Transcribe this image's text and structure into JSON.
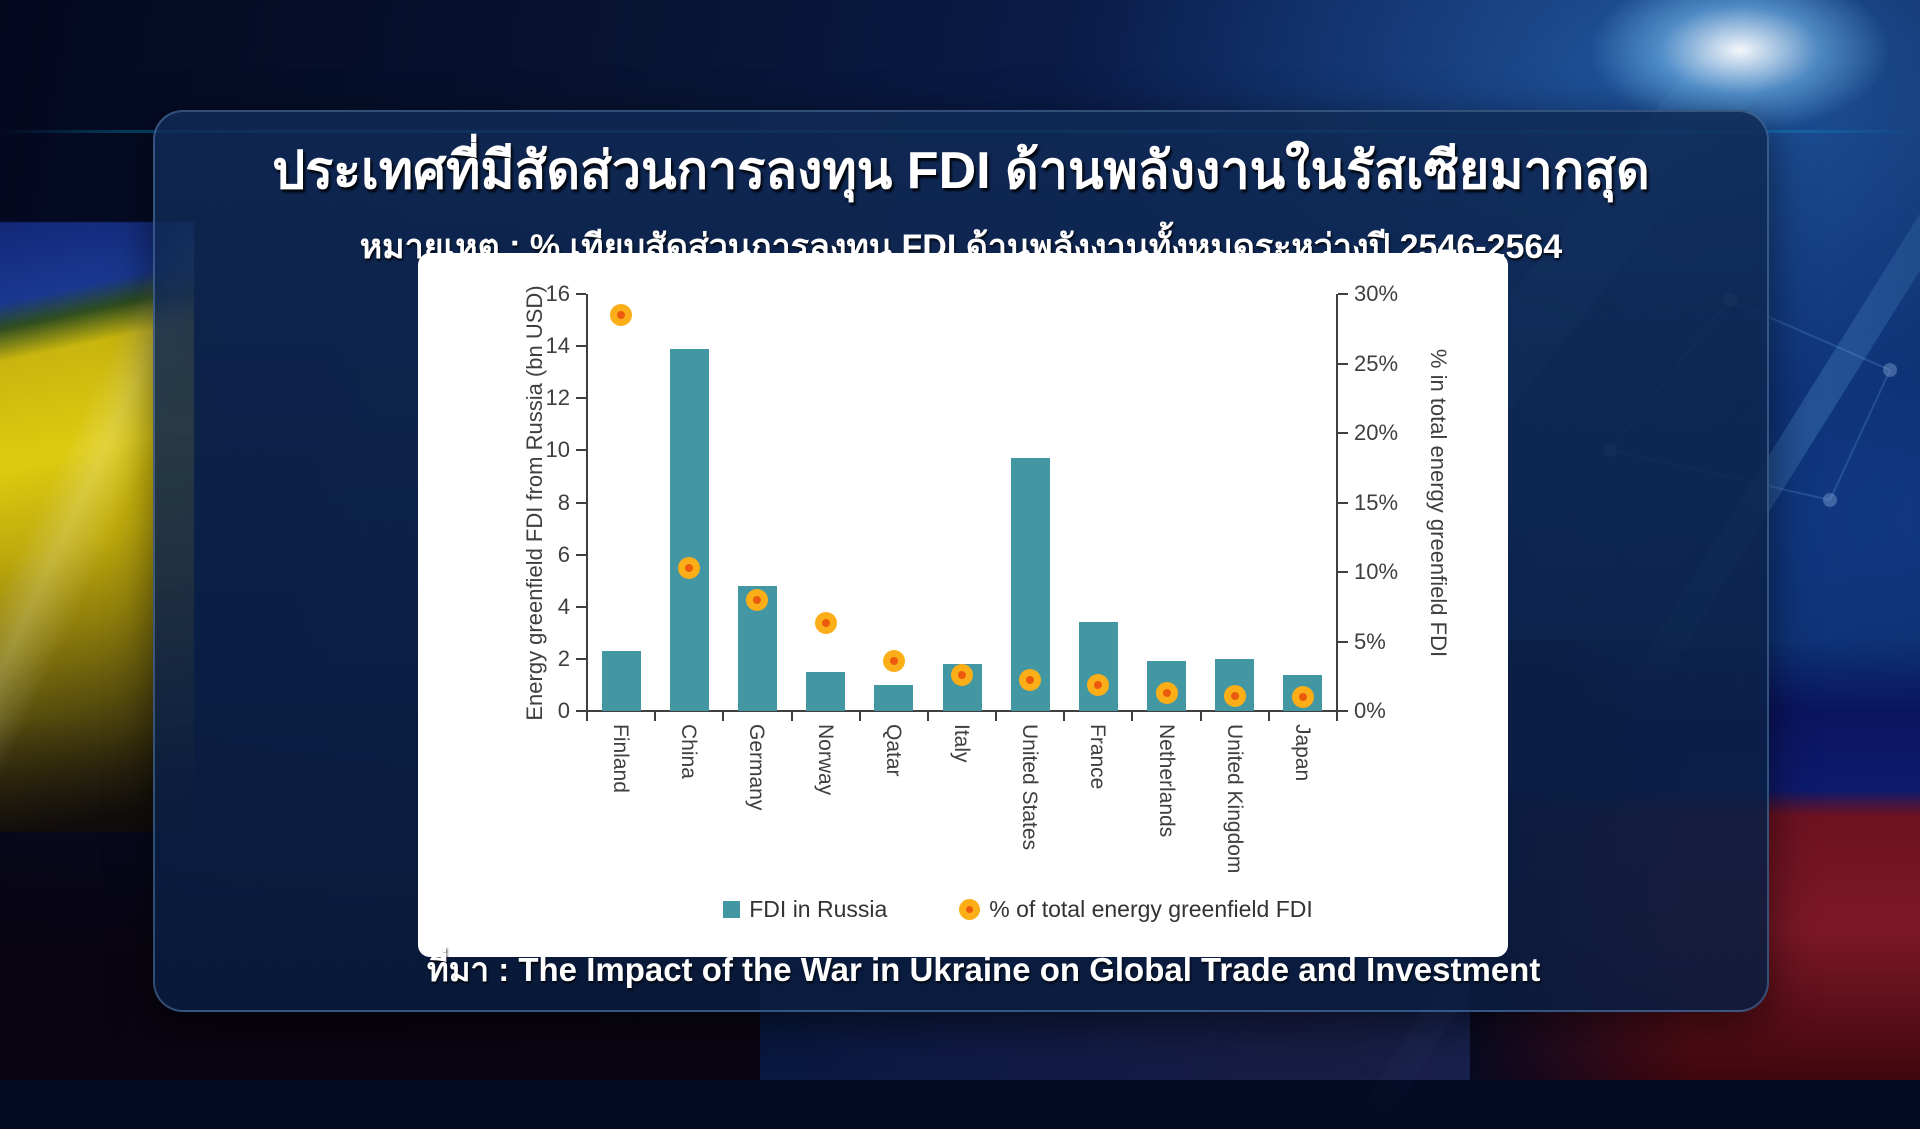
{
  "header": {
    "title": "ประเทศที่มีสัดส่วนการลงทุน FDI ด้านพลังงานในรัสเซียมากสุด",
    "subtitle": "หมายเหตุ : % เทียบสัดส่วนการลงทุน FDI ด้านพลังงานทั้งหมดระหว่างปี 2546-2564"
  },
  "source": "ที่มา : The Impact of the War in Ukraine on Global Trade and Investment",
  "chart_data": {
    "type": "bar",
    "categories": [
      "Finland",
      "China",
      "Germany",
      "Norway",
      "Qatar",
      "Italy",
      "United States",
      "France",
      "Netherlands",
      "United Kingdom",
      "Japan"
    ],
    "series": [
      {
        "name": "FDI in Russia",
        "type": "bar",
        "axis": "left",
        "color": "#4397A3",
        "values": [
          2.3,
          13.9,
          4.8,
          1.5,
          1.0,
          1.8,
          9.7,
          3.4,
          1.9,
          2.0,
          1.4
        ]
      },
      {
        "name": "% of total energy greenfield FDI",
        "type": "scatter",
        "axis": "right",
        "color": "#FBAE17",
        "center_color": "#EB5B0E",
        "values": [
          28.5,
          10.3,
          8.0,
          6.3,
          3.6,
          2.6,
          2.2,
          1.9,
          1.3,
          1.1,
          1.0
        ]
      }
    ],
    "left_axis": {
      "label": "Energy greenfield FDI from Russia (bn USD)",
      "min": 0,
      "max": 16,
      "ticks": [
        0,
        2,
        4,
        6,
        8,
        10,
        12,
        14,
        16
      ]
    },
    "right_axis": {
      "label": "% in total energy greenfield FDI",
      "min": 0,
      "max": 30,
      "ticks": [
        0,
        5,
        10,
        15,
        20,
        25,
        30
      ],
      "tick_suffix": "%"
    },
    "axis_color": "#3F3F3F",
    "grid": false,
    "legend_position": "bottom"
  }
}
